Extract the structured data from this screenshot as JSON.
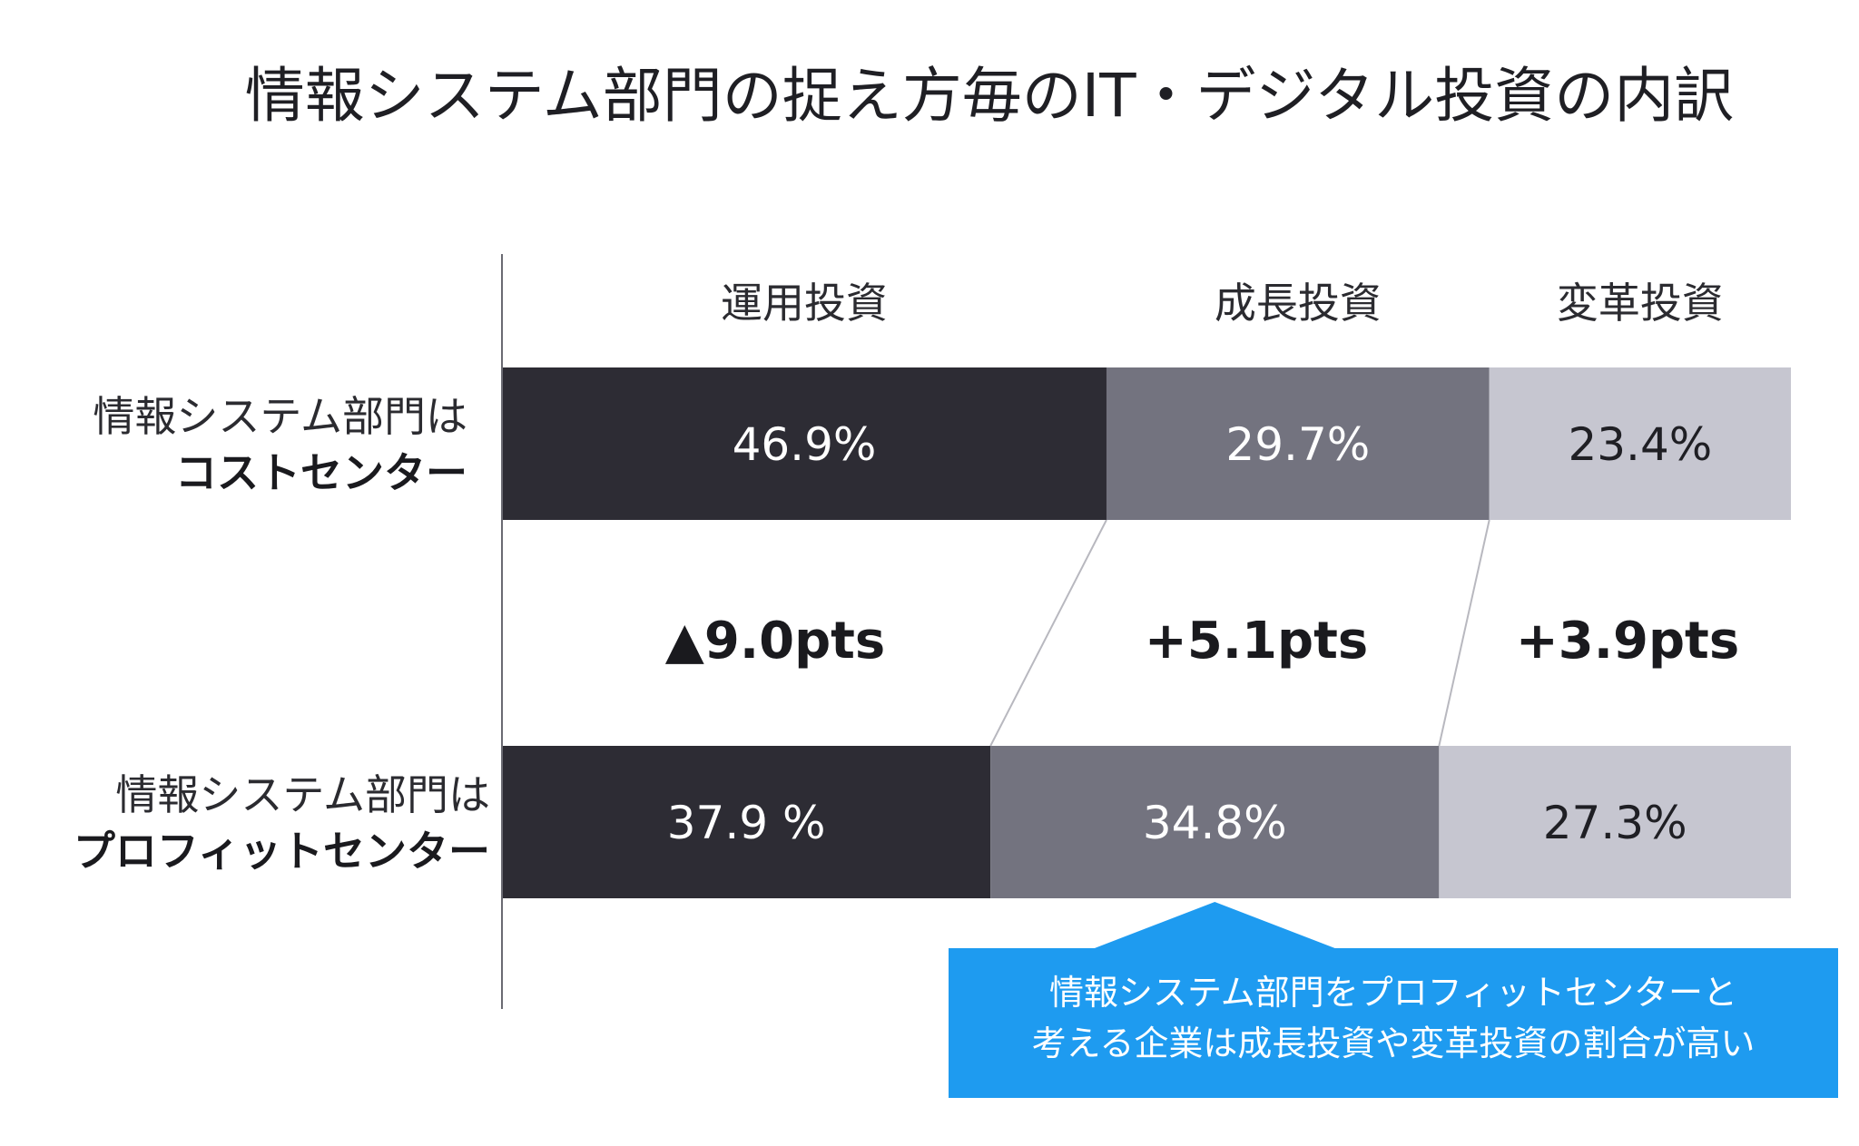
{
  "chart_data": {
    "type": "bar",
    "orientation": "horizontal",
    "stacked": true,
    "normalized": true,
    "title": "情報システム部門の捉え方毎のIT・デジタル投資の内訳",
    "categories": [
      {
        "line1": "情報システム部門は",
        "line2": "コストセンター"
      },
      {
        "line1": "情報システム部門は",
        "line2": "プロフィットセンター"
      }
    ],
    "series": [
      {
        "name": "運用投資",
        "color": "#2d2c34",
        "text_color": "#ffffff",
        "values": [
          46.9,
          37.9
        ],
        "labels": [
          "46.9%",
          "37.9 %"
        ]
      },
      {
        "name": "成長投資",
        "color": "#73737f",
        "text_color": "#ffffff",
        "values": [
          29.7,
          34.8
        ],
        "labels": [
          "29.7%",
          "34.8%"
        ]
      },
      {
        "name": "変革投資",
        "color": "#c6c6d0",
        "text_color": "#1f1f24",
        "values": [
          23.4,
          27.3
        ],
        "labels": [
          "23.4%",
          "27.3%"
        ]
      }
    ],
    "differences": [
      "▲9.0pts",
      "+5.1pts",
      "+3.9pts"
    ],
    "callout": {
      "lines": [
        "情報システム部門をプロフィットセンターと",
        "考える企業は成長投資や変革投資の割合が高い"
      ],
      "color": "#1e9bf0"
    },
    "xlim": [
      0,
      100
    ],
    "grid": false,
    "legend": "none"
  }
}
